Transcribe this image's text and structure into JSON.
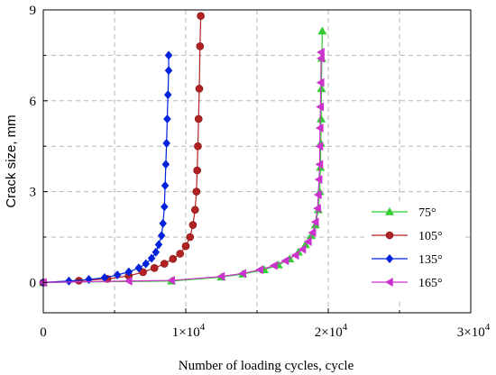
{
  "chart_data": {
    "type": "line",
    "title": "",
    "xlabel": "Number of loading cycles, cycle",
    "ylabel": "Crack size, mm",
    "xlim": [
      0,
      30000
    ],
    "ylim": [
      -1,
      9
    ],
    "x_ticks": [
      0,
      10000,
      20000,
      30000
    ],
    "x_tick_labels": [
      "0",
      "1×10",
      "2×10",
      "3×10"
    ],
    "x_tick_exponent": "4",
    "y_ticks": [
      0,
      3,
      6,
      9
    ],
    "y_tick_labels": [
      "0",
      "3",
      "6",
      "9"
    ],
    "grid": true,
    "legend_position": "right",
    "series": [
      {
        "name": "75°",
        "color": "#33cc33",
        "marker": "triangle-up",
        "points": [
          [
            0,
            0
          ],
          [
            9000,
            0.05
          ],
          [
            12500,
            0.18
          ],
          [
            14000,
            0.28
          ],
          [
            15500,
            0.42
          ],
          [
            16500,
            0.58
          ],
          [
            17300,
            0.78
          ],
          [
            17900,
            1.0
          ],
          [
            18400,
            1.25
          ],
          [
            18800,
            1.55
          ],
          [
            19100,
            1.9
          ],
          [
            19300,
            2.4
          ],
          [
            19400,
            3.0
          ],
          [
            19450,
            3.8
          ],
          [
            19480,
            4.6
          ],
          [
            19500,
            5.4
          ],
          [
            19520,
            6.4
          ],
          [
            19550,
            7.4
          ],
          [
            19580,
            8.3
          ]
        ]
      },
      {
        "name": "105°",
        "color": "#b22222",
        "marker": "circle",
        "points": [
          [
            0,
            0
          ],
          [
            2500,
            0.06
          ],
          [
            4500,
            0.12
          ],
          [
            6000,
            0.22
          ],
          [
            7000,
            0.34
          ],
          [
            7800,
            0.48
          ],
          [
            8500,
            0.62
          ],
          [
            9100,
            0.78
          ],
          [
            9600,
            0.95
          ],
          [
            10000,
            1.2
          ],
          [
            10300,
            1.5
          ],
          [
            10500,
            1.9
          ],
          [
            10650,
            2.4
          ],
          [
            10750,
            3.0
          ],
          [
            10800,
            3.7
          ],
          [
            10850,
            4.5
          ],
          [
            10900,
            5.4
          ],
          [
            10950,
            6.4
          ],
          [
            11000,
            7.8
          ],
          [
            11050,
            8.8
          ]
        ]
      },
      {
        "name": "135°",
        "color": "#0022dd",
        "marker": "diamond",
        "points": [
          [
            0,
            0
          ],
          [
            1800,
            0.05
          ],
          [
            3200,
            0.1
          ],
          [
            4300,
            0.16
          ],
          [
            5200,
            0.25
          ],
          [
            6000,
            0.35
          ],
          [
            6700,
            0.48
          ],
          [
            7200,
            0.62
          ],
          [
            7600,
            0.8
          ],
          [
            7900,
            1.0
          ],
          [
            8100,
            1.25
          ],
          [
            8300,
            1.55
          ],
          [
            8400,
            1.95
          ],
          [
            8500,
            2.5
          ],
          [
            8550,
            3.2
          ],
          [
            8600,
            3.9
          ],
          [
            8650,
            4.6
          ],
          [
            8700,
            5.4
          ],
          [
            8750,
            6.2
          ],
          [
            8800,
            7.0
          ],
          [
            8800,
            7.5
          ]
        ]
      },
      {
        "name": "165°",
        "color": "#cc33cc",
        "marker": "triangle-left",
        "points": [
          [
            0,
            0
          ],
          [
            6000,
            0.05
          ],
          [
            9000,
            0.07
          ],
          [
            12500,
            0.2
          ],
          [
            14000,
            0.3
          ],
          [
            15200,
            0.42
          ],
          [
            16200,
            0.56
          ],
          [
            17000,
            0.72
          ],
          [
            17700,
            0.9
          ],
          [
            18200,
            1.1
          ],
          [
            18600,
            1.35
          ],
          [
            18900,
            1.65
          ],
          [
            19100,
            2.0
          ],
          [
            19250,
            2.45
          ],
          [
            19300,
            2.9
          ],
          [
            19350,
            3.4
          ],
          [
            19400,
            3.9
          ],
          [
            19400,
            4.5
          ],
          [
            19420,
            5.1
          ],
          [
            19450,
            5.8
          ],
          [
            19480,
            6.6
          ],
          [
            19500,
            7.4
          ],
          [
            19500,
            7.6
          ]
        ]
      }
    ]
  }
}
